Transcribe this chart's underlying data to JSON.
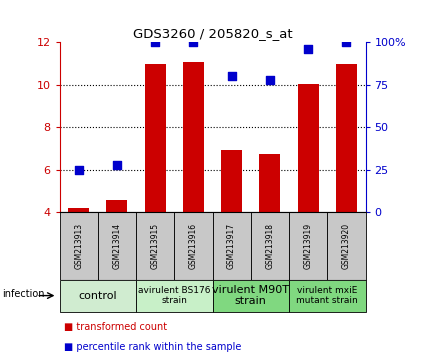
{
  "title": "GDS3260 / 205820_s_at",
  "samples": [
    "GSM213913",
    "GSM213914",
    "GSM213915",
    "GSM213916",
    "GSM213917",
    "GSM213918",
    "GSM213919",
    "GSM213920"
  ],
  "bar_values": [
    4.2,
    4.6,
    11.0,
    11.1,
    6.95,
    6.75,
    10.05,
    11.0
  ],
  "dot_percentile": [
    25,
    28,
    100,
    100,
    80,
    78,
    96,
    100
  ],
  "ylim_left": [
    4,
    12
  ],
  "ylim_right": [
    0,
    100
  ],
  "yticks_left": [
    4,
    6,
    8,
    10,
    12
  ],
  "yticks_right": [
    0,
    25,
    50,
    75,
    100
  ],
  "ytick_labels_right": [
    "0",
    "25",
    "50",
    "75",
    "100%"
  ],
  "bar_color": "#cc0000",
  "dot_color": "#0000cc",
  "bar_width": 0.55,
  "groups": [
    {
      "label": "control",
      "samples": [
        0,
        1
      ],
      "color": "#d0ecd0",
      "fontsize": 8
    },
    {
      "label": "avirulent BS176\nstrain",
      "samples": [
        2,
        3
      ],
      "color": "#c8f0c8",
      "fontsize": 6.5
    },
    {
      "label": "virulent M90T\nstrain",
      "samples": [
        4,
        5
      ],
      "color": "#80d880",
      "fontsize": 8
    },
    {
      "label": "virulent mxiE\nmutant strain",
      "samples": [
        6,
        7
      ],
      "color": "#80d880",
      "fontsize": 6.5
    }
  ],
  "infection_label": "infection",
  "legend_bar_label": "transformed count",
  "legend_dot_label": "percentile rank within the sample",
  "tick_color_left": "#cc0000",
  "tick_color_right": "#0000cc",
  "bg_color_samples": "#c8c8c8",
  "fig_width": 4.25,
  "fig_height": 3.54
}
